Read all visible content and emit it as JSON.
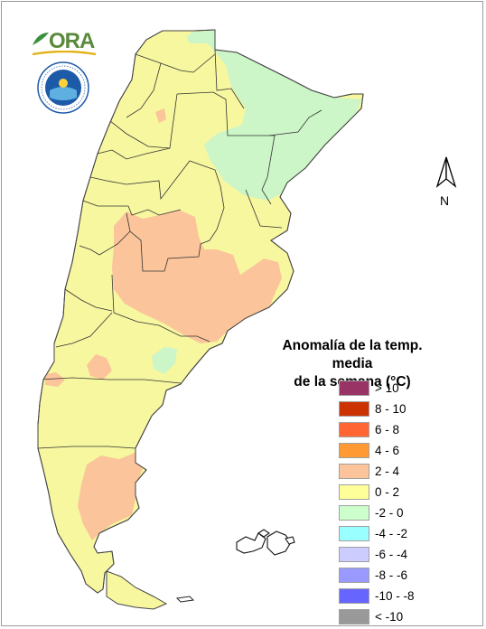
{
  "logo": {
    "text": "ORA"
  },
  "north_arrow": {
    "label": "N"
  },
  "legend": {
    "title_line1": "Anomalía de la temp. media",
    "title_line2": "de la semana (°C)",
    "items": [
      {
        "label": "> 10",
        "color": "#993366"
      },
      {
        "label": "8 - 10",
        "color": "#cc3300"
      },
      {
        "label": "6 - 8",
        "color": "#ff6633"
      },
      {
        "label": "4 - 6",
        "color": "#ff9933"
      },
      {
        "label": "2 - 4",
        "color": "#fbc49a"
      },
      {
        "label": "0 - 2",
        "color": "#ffff99"
      },
      {
        "label": "-2 - 0",
        "color": "#ccffcc"
      },
      {
        "label": "-4 - -2",
        "color": "#99ffff"
      },
      {
        "label": "-6 - -4",
        "color": "#ccccff"
      },
      {
        "label": "-8 - -6",
        "color": "#9999ff"
      },
      {
        "label": "-10 - -8",
        "color": "#6666ff"
      },
      {
        "label": "< -10",
        "color": "#999999"
      }
    ]
  },
  "map_colors": {
    "base": "#f7f7a0",
    "warm": "#fbc49a",
    "cool": "#ccf5c8",
    "border": "#333333"
  }
}
